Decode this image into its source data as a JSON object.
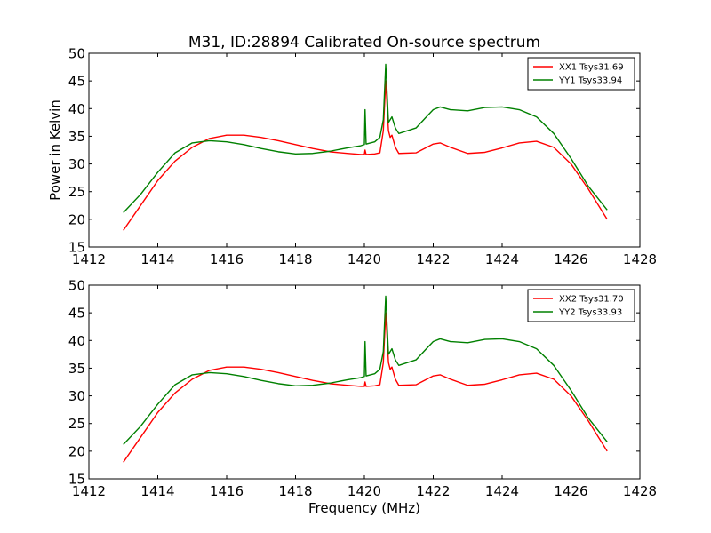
{
  "figure": {
    "title": "M31, ID:28894 Calibrated On-source spectrum"
  },
  "chart_data": [
    {
      "type": "line",
      "title": "M31, ID:28894 Calibrated On-source spectrum",
      "xlabel": "",
      "ylabel": "Power in Kelvin",
      "xlim": [
        1412,
        1428
      ],
      "ylim": [
        15,
        50
      ],
      "xticks": [
        1412,
        1414,
        1416,
        1418,
        1420,
        1422,
        1424,
        1426,
        1428
      ],
      "yticks": [
        15,
        20,
        25,
        30,
        35,
        40,
        45,
        50
      ],
      "grid": false,
      "legend_position": "top-right",
      "series": [
        {
          "name": "XX1 Tsys31.69",
          "color": "#ff0000",
          "x": [
            1413.0,
            1413.5,
            1414.0,
            1414.5,
            1415.0,
            1415.5,
            1416.0,
            1416.5,
            1417.0,
            1417.5,
            1418.0,
            1418.5,
            1419.0,
            1419.5,
            1419.9,
            1420.0,
            1420.02,
            1420.05,
            1420.3,
            1420.45,
            1420.55,
            1420.62,
            1420.7,
            1420.75,
            1420.8,
            1420.9,
            1421.0,
            1421.5,
            1422.0,
            1422.2,
            1422.5,
            1423.0,
            1423.5,
            1424.0,
            1424.5,
            1425.0,
            1425.5,
            1426.0,
            1426.5,
            1427.05
          ],
          "values": [
            18.0,
            22.5,
            27.0,
            30.5,
            33.0,
            34.6,
            35.2,
            35.2,
            34.8,
            34.2,
            33.5,
            32.8,
            32.2,
            31.9,
            31.7,
            31.7,
            32.5,
            31.7,
            31.8,
            32.0,
            36.0,
            45.0,
            36.0,
            34.8,
            35.2,
            33.0,
            31.9,
            32.0,
            33.6,
            33.8,
            33.0,
            31.9,
            32.1,
            32.9,
            33.8,
            34.1,
            33.0,
            30.0,
            25.5,
            20.0
          ]
        },
        {
          "name": "YY1 Tsys33.94",
          "color": "#008000",
          "x": [
            1413.0,
            1413.5,
            1414.0,
            1414.5,
            1415.0,
            1415.5,
            1416.0,
            1416.5,
            1417.0,
            1417.5,
            1418.0,
            1418.5,
            1419.0,
            1419.5,
            1419.9,
            1420.0,
            1420.02,
            1420.05,
            1420.3,
            1420.45,
            1420.55,
            1420.62,
            1420.7,
            1420.75,
            1420.8,
            1420.9,
            1421.0,
            1421.5,
            1421.8,
            1422.0,
            1422.2,
            1422.5,
            1423.0,
            1423.5,
            1424.0,
            1424.5,
            1425.0,
            1425.5,
            1426.0,
            1426.5,
            1427.05
          ],
          "values": [
            21.2,
            24.5,
            28.5,
            32.0,
            33.8,
            34.2,
            34.0,
            33.5,
            32.8,
            32.2,
            31.8,
            31.9,
            32.3,
            32.9,
            33.3,
            33.5,
            39.8,
            33.6,
            34.0,
            34.8,
            38.0,
            48.0,
            37.5,
            38.0,
            38.5,
            36.5,
            35.5,
            36.5,
            38.5,
            39.8,
            40.3,
            39.8,
            39.6,
            40.2,
            40.3,
            39.8,
            38.5,
            35.5,
            31.0,
            26.0,
            21.7
          ]
        }
      ]
    },
    {
      "type": "line",
      "title": "",
      "xlabel": "Frequency (MHz)",
      "ylabel": "",
      "xlim": [
        1412,
        1428
      ],
      "ylim": [
        15,
        50
      ],
      "xticks": [
        1412,
        1414,
        1416,
        1418,
        1420,
        1422,
        1424,
        1426,
        1428
      ],
      "yticks": [
        15,
        20,
        25,
        30,
        35,
        40,
        45,
        50
      ],
      "grid": false,
      "legend_position": "top-right",
      "series": [
        {
          "name": "XX2 Tsys31.70",
          "color": "#ff0000",
          "x": [
            1413.0,
            1413.5,
            1414.0,
            1414.5,
            1415.0,
            1415.5,
            1416.0,
            1416.5,
            1417.0,
            1417.5,
            1418.0,
            1418.5,
            1419.0,
            1419.5,
            1419.9,
            1420.0,
            1420.02,
            1420.05,
            1420.3,
            1420.45,
            1420.55,
            1420.62,
            1420.7,
            1420.75,
            1420.8,
            1420.9,
            1421.0,
            1421.5,
            1422.0,
            1422.2,
            1422.5,
            1423.0,
            1423.5,
            1424.0,
            1424.5,
            1425.0,
            1425.5,
            1426.0,
            1426.5,
            1427.05
          ],
          "values": [
            18.0,
            22.5,
            27.0,
            30.5,
            33.0,
            34.6,
            35.2,
            35.2,
            34.8,
            34.2,
            33.5,
            32.8,
            32.2,
            31.9,
            31.7,
            31.7,
            32.5,
            31.7,
            31.8,
            32.0,
            36.0,
            45.0,
            36.0,
            34.8,
            35.2,
            33.0,
            31.9,
            32.0,
            33.6,
            33.8,
            33.0,
            31.9,
            32.1,
            32.9,
            33.8,
            34.1,
            33.0,
            30.0,
            25.5,
            20.0
          ]
        },
        {
          "name": "YY2 Tsys33.93",
          "color": "#008000",
          "x": [
            1413.0,
            1413.5,
            1414.0,
            1414.5,
            1415.0,
            1415.5,
            1416.0,
            1416.5,
            1417.0,
            1417.5,
            1418.0,
            1418.5,
            1419.0,
            1419.5,
            1419.9,
            1420.0,
            1420.02,
            1420.05,
            1420.3,
            1420.45,
            1420.55,
            1420.62,
            1420.7,
            1420.75,
            1420.8,
            1420.9,
            1421.0,
            1421.5,
            1421.8,
            1422.0,
            1422.2,
            1422.5,
            1423.0,
            1423.5,
            1424.0,
            1424.5,
            1425.0,
            1425.5,
            1426.0,
            1426.5,
            1427.05
          ],
          "values": [
            21.2,
            24.5,
            28.5,
            32.0,
            33.8,
            34.2,
            34.0,
            33.5,
            32.8,
            32.2,
            31.8,
            31.9,
            32.3,
            32.9,
            33.3,
            33.5,
            39.8,
            33.6,
            34.0,
            34.8,
            38.0,
            48.0,
            37.5,
            38.0,
            38.5,
            36.5,
            35.5,
            36.5,
            38.5,
            39.8,
            40.3,
            39.8,
            39.6,
            40.2,
            40.3,
            39.8,
            38.5,
            35.5,
            31.0,
            26.0,
            21.7
          ]
        }
      ]
    }
  ]
}
